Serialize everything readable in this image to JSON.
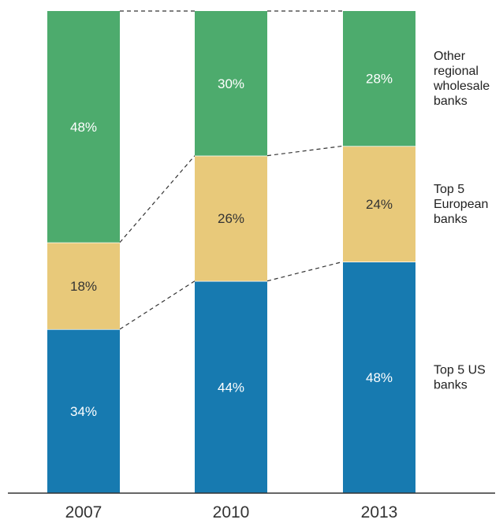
{
  "chart_data": {
    "type": "bar",
    "stacked": true,
    "normalized_percent": true,
    "categories": [
      "2007",
      "2010",
      "2013"
    ],
    "series": [
      {
        "name": "Top 5 US banks",
        "values": [
          34,
          44,
          48
        ],
        "color": "#177ab0",
        "label_color": "#ffffff"
      },
      {
        "name": "Top 5 European banks",
        "values": [
          18,
          26,
          24
        ],
        "color": "#e8c97a",
        "label_color": "#333333"
      },
      {
        "name": "Other regional wholesale banks",
        "values": [
          48,
          30,
          28
        ],
        "color": "#4dab6d",
        "label_color": "#ffffff"
      }
    ],
    "data_labels": [
      [
        "34%",
        "44%",
        "48%"
      ],
      [
        "18%",
        "26%",
        "24%"
      ],
      [
        "48%",
        "30%",
        "28%"
      ]
    ],
    "legend_placement": "right",
    "legend_lines": [
      [
        "Top 5 US",
        "banks"
      ],
      [
        "Top 5",
        "European",
        "banks"
      ],
      [
        "Other",
        "regional",
        "wholesale",
        "banks"
      ]
    ],
    "ylim": [
      0,
      100
    ],
    "grid": false,
    "connector_lines": "dashed"
  }
}
